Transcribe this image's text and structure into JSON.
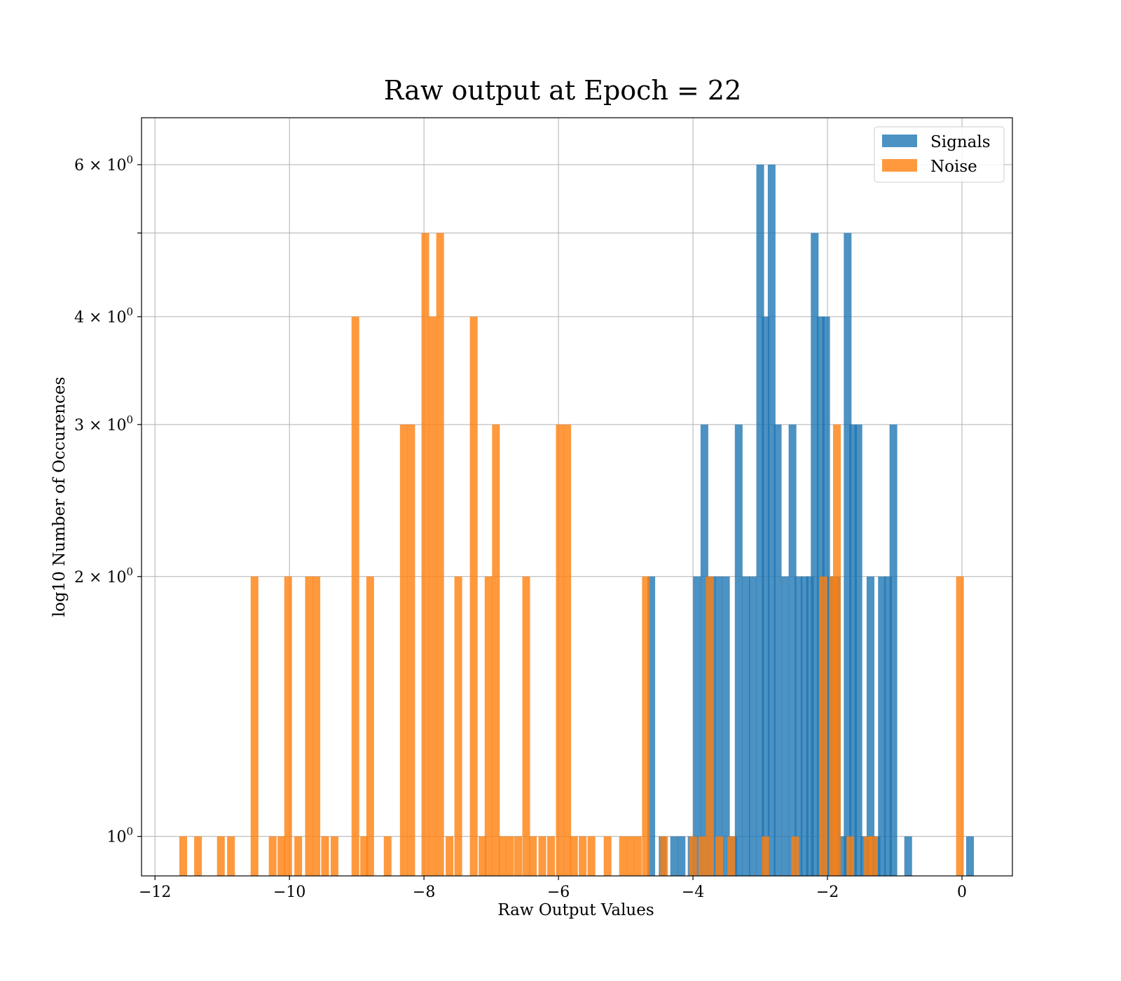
{
  "chart_data": {
    "type": "bar",
    "subtype": "histogram",
    "title": "Raw output at Epoch = 22",
    "xlabel": "Raw Output Values",
    "ylabel": "log10 Number of Occurences",
    "xlim": [
      -12.2,
      0.75
    ],
    "ylim": [
      0.9,
      6.8
    ],
    "yscale": "log",
    "grid": true,
    "legend_position": "top-right",
    "x_ticks": [
      {
        "value": -12,
        "label": "−12"
      },
      {
        "value": -10,
        "label": "−10"
      },
      {
        "value": -8,
        "label": "−8"
      },
      {
        "value": -6,
        "label": "−6"
      },
      {
        "value": -4,
        "label": "−4"
      },
      {
        "value": -2,
        "label": "−2"
      },
      {
        "value": 0,
        "label": "0"
      }
    ],
    "y_ticks": [
      {
        "value": 1,
        "base": "10",
        "exp": "0"
      },
      {
        "value": 2,
        "base": "2 × 10",
        "exp": "0"
      },
      {
        "value": 3,
        "base": "3 × 10",
        "exp": "0"
      },
      {
        "value": 4,
        "base": "4 × 10",
        "exp": "0"
      },
      {
        "value": 5,
        "base": "",
        "exp": ""
      },
      {
        "value": 6,
        "base": "6 × 10",
        "exp": "0"
      }
    ],
    "bin_width": 0.115,
    "series": [
      {
        "name": "Signals",
        "color": "#1f77b4",
        "opacity": 0.8,
        "bins": [
          [
            -4.62,
            2
          ],
          [
            -4.45,
            1
          ],
          [
            -4.28,
            1
          ],
          [
            -4.17,
            1
          ],
          [
            -4.02,
            1
          ],
          [
            -3.94,
            2
          ],
          [
            -3.83,
            3
          ],
          [
            -3.72,
            2
          ],
          [
            -3.62,
            2
          ],
          [
            -3.51,
            2
          ],
          [
            -3.4,
            1
          ],
          [
            -3.32,
            3
          ],
          [
            -3.21,
            2
          ],
          [
            -3.11,
            2
          ],
          [
            -3.0,
            6
          ],
          [
            -2.92,
            4
          ],
          [
            -2.83,
            6
          ],
          [
            -2.74,
            3
          ],
          [
            -2.63,
            2
          ],
          [
            -2.52,
            3
          ],
          [
            -2.43,
            2
          ],
          [
            -2.34,
            2
          ],
          [
            -2.26,
            2
          ],
          [
            -2.19,
            5
          ],
          [
            -2.1,
            4
          ],
          [
            -2.02,
            4
          ],
          [
            -1.94,
            2
          ],
          [
            -1.86,
            2
          ],
          [
            -1.77,
            1
          ],
          [
            -1.7,
            5
          ],
          [
            -1.62,
            3
          ],
          [
            -1.54,
            3
          ],
          [
            -1.45,
            1
          ],
          [
            -1.36,
            2
          ],
          [
            -1.27,
            1
          ],
          [
            -1.19,
            2
          ],
          [
            -1.1,
            2
          ],
          [
            -1.02,
            3
          ],
          [
            -0.8,
            1
          ],
          [
            0.12,
            1
          ]
        ]
      },
      {
        "name": "Noise",
        "color": "#ff7f0e",
        "opacity": 0.8,
        "bins": [
          [
            -11.58,
            1
          ],
          [
            -11.36,
            1
          ],
          [
            -11.02,
            1
          ],
          [
            -10.87,
            1
          ],
          [
            -10.52,
            2
          ],
          [
            -10.25,
            1
          ],
          [
            -10.12,
            1
          ],
          [
            -10.02,
            2
          ],
          [
            -9.87,
            1
          ],
          [
            -9.71,
            2
          ],
          [
            -9.6,
            2
          ],
          [
            -9.47,
            1
          ],
          [
            -9.33,
            1
          ],
          [
            -9.02,
            4
          ],
          [
            -8.89,
            1
          ],
          [
            -8.8,
            2
          ],
          [
            -8.54,
            1
          ],
          [
            -8.3,
            3
          ],
          [
            -8.19,
            3
          ],
          [
            -7.98,
            5
          ],
          [
            -7.87,
            4
          ],
          [
            -7.76,
            5
          ],
          [
            -7.62,
            1
          ],
          [
            -7.49,
            2
          ],
          [
            -7.26,
            4
          ],
          [
            -7.13,
            1
          ],
          [
            -7.04,
            2
          ],
          [
            -6.93,
            3
          ],
          [
            -6.83,
            1
          ],
          [
            -6.72,
            1
          ],
          [
            -6.6,
            1
          ],
          [
            -6.48,
            2
          ],
          [
            -6.38,
            1
          ],
          [
            -6.24,
            1
          ],
          [
            -6.11,
            1
          ],
          [
            -5.98,
            3
          ],
          [
            -5.87,
            3
          ],
          [
            -5.77,
            1
          ],
          [
            -5.64,
            1
          ],
          [
            -5.51,
            1
          ],
          [
            -5.27,
            1
          ],
          [
            -5.04,
            1
          ],
          [
            -4.93,
            1
          ],
          [
            -4.82,
            1
          ],
          [
            -4.7,
            2
          ],
          [
            -4.43,
            1
          ],
          [
            -4.0,
            1
          ],
          [
            -3.86,
            1
          ],
          [
            -3.75,
            2
          ],
          [
            -3.61,
            1
          ],
          [
            -3.43,
            1
          ],
          [
            -2.92,
            1
          ],
          [
            -2.48,
            1
          ],
          [
            -2.06,
            2
          ],
          [
            -1.92,
            2
          ],
          [
            -1.86,
            3
          ],
          [
            -1.66,
            1
          ],
          [
            -1.4,
            1
          ],
          [
            -1.31,
            1
          ],
          [
            -0.03,
            2
          ]
        ]
      }
    ]
  }
}
